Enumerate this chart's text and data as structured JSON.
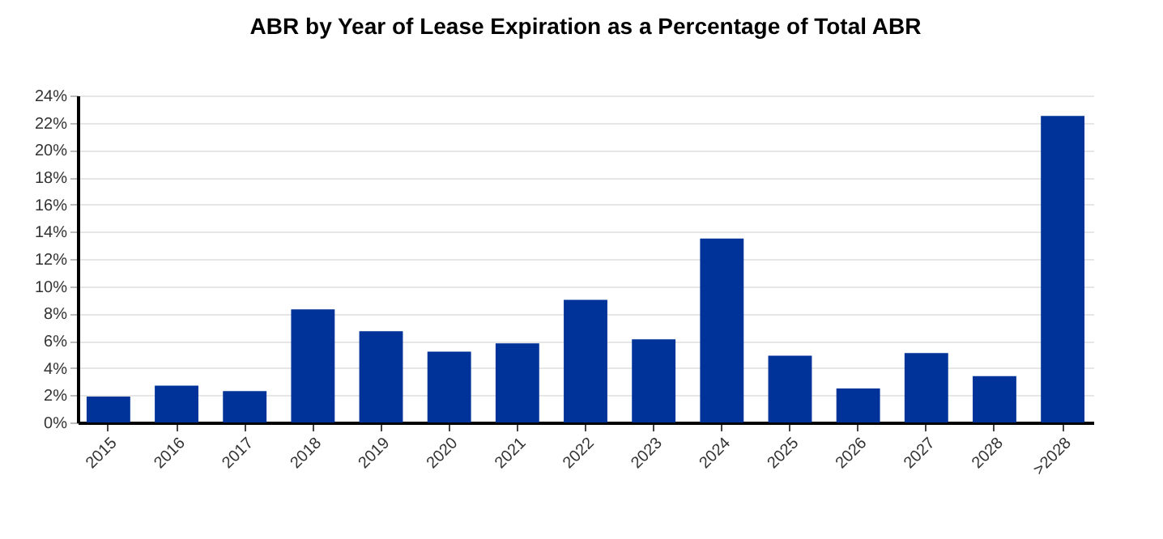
{
  "chart_data": {
    "type": "bar",
    "title": "ABR by Year of Lease Expiration as a Percentage of Total ABR",
    "categories": [
      "2015",
      "2016",
      "2017",
      "2018",
      "2019",
      "2020",
      "2021",
      "2022",
      "2023",
      "2024",
      "2025",
      "2026",
      "2027",
      "2028",
      ">2028"
    ],
    "values": [
      1.9,
      2.7,
      2.3,
      8.3,
      6.7,
      5.2,
      5.8,
      9.0,
      6.1,
      13.5,
      4.9,
      2.5,
      5.1,
      3.4,
      22.5
    ],
    "color": "#003399",
    "ylim": [
      0,
      24
    ],
    "yticks": [
      {
        "value": 0,
        "label": "0%"
      },
      {
        "value": 2,
        "label": "2%"
      },
      {
        "value": 4,
        "label": "4%"
      },
      {
        "value": 6,
        "label": "6%"
      },
      {
        "value": 8,
        "label": "8%"
      },
      {
        "value": 10,
        "label": "10%"
      },
      {
        "value": 12,
        "label": "12%"
      },
      {
        "value": 14,
        "label": "14%"
      },
      {
        "value": 16,
        "label": "16%"
      },
      {
        "value": 18,
        "label": "18%"
      },
      {
        "value": 20,
        "label": "20%"
      },
      {
        "value": 22,
        "label": "22%"
      },
      {
        "value": 24,
        "label": "24%"
      }
    ],
    "grid": "y"
  }
}
